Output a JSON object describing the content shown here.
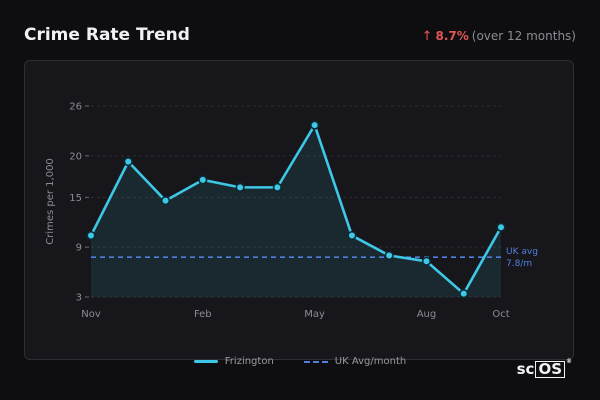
{
  "header": {
    "title": "Crime Rate Trend",
    "change_arrow": "↑",
    "change_value": "8.7%",
    "change_note": "(over 12 months)"
  },
  "colors": {
    "series": "#3cc8e6",
    "average": "#4f7fe0",
    "increase": "#e25555"
  },
  "legend": {
    "series_label": "Frizington",
    "average_label": "UK Avg/month"
  },
  "logo": {
    "text_left": "sc",
    "text_box": "OS",
    "mark": "®"
  },
  "chart_data": {
    "type": "line",
    "ylabel": "Crimes per 1,000",
    "xlabel": "",
    "y_ticks": [
      3,
      9,
      15,
      20,
      26
    ],
    "ylim": [
      3,
      26
    ],
    "x_tick_labels": [
      {
        "index": 0,
        "label": "Nov"
      },
      {
        "index": 3,
        "label": "Feb"
      },
      {
        "index": 6,
        "label": "May"
      },
      {
        "index": 9,
        "label": "Aug"
      },
      {
        "index": 11,
        "label": "Oct"
      }
    ],
    "series": [
      {
        "name": "Frizington",
        "values": [
          10.4,
          19.3,
          14.6,
          17.1,
          16.2,
          16.2,
          23.7,
          10.4,
          8.0,
          7.3,
          3.4,
          11.4
        ]
      }
    ],
    "reference_line": {
      "name": "UK Avg/month",
      "value": 7.8,
      "label_line1": "UK avg",
      "label_line2": "7.8/m"
    },
    "grid": true,
    "legend_position": "bottom-center"
  }
}
